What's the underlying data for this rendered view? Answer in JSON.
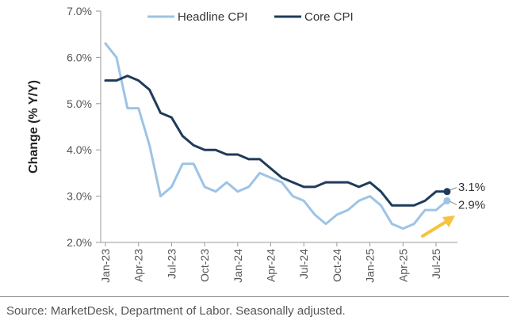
{
  "chart_data": {
    "type": "line",
    "ylabel": "Change (% Y/Y)",
    "ylim": [
      2.0,
      7.0
    ],
    "yticks": [
      "7.0%",
      "6.0%",
      "5.0%",
      "4.0%",
      "3.0%",
      "2.0%"
    ],
    "ytick_values": [
      7.0,
      6.0,
      5.0,
      4.0,
      3.0,
      2.0
    ],
    "xtick_labels": [
      "Jan-23",
      "Apr-23",
      "Jul-23",
      "Oct-23",
      "Jan-24",
      "Apr-24",
      "Jul-24",
      "Oct-24",
      "Jan-25",
      "Apr-25",
      "Jul-25"
    ],
    "xtick_months": [
      0,
      3,
      6,
      9,
      12,
      15,
      18,
      21,
      24,
      27,
      30
    ],
    "months": [
      "Jan-23",
      "Feb-23",
      "Mar-23",
      "Apr-23",
      "May-23",
      "Jun-23",
      "Jul-23",
      "Aug-23",
      "Sep-23",
      "Oct-23",
      "Nov-23",
      "Dec-23",
      "Jan-24",
      "Feb-24",
      "Mar-24",
      "Apr-24",
      "May-24",
      "Jun-24",
      "Jul-24",
      "Aug-24",
      "Sep-24",
      "Oct-24",
      "Nov-24",
      "Dec-24",
      "Jan-25",
      "Feb-25",
      "Mar-25",
      "Apr-25",
      "May-25",
      "Jun-25",
      "Jul-25",
      "Aug-25"
    ],
    "series": [
      {
        "name": "Headline CPI",
        "color": "#9dc3e6",
        "values": [
          6.3,
          6.0,
          4.9,
          4.9,
          4.1,
          3.0,
          3.2,
          3.7,
          3.7,
          3.2,
          3.1,
          3.3,
          3.1,
          3.2,
          3.5,
          3.4,
          3.3,
          3.0,
          2.9,
          2.6,
          2.4,
          2.6,
          2.7,
          2.9,
          3.0,
          2.8,
          2.4,
          2.3,
          2.4,
          2.7,
          2.7,
          2.9
        ],
        "end_label": "2.9%"
      },
      {
        "name": "Core CPI",
        "color": "#1f3b5c",
        "values": [
          5.5,
          5.5,
          5.6,
          5.5,
          5.3,
          4.8,
          4.7,
          4.3,
          4.1,
          4.0,
          4.0,
          3.9,
          3.9,
          3.8,
          3.8,
          3.6,
          3.4,
          3.3,
          3.2,
          3.2,
          3.3,
          3.3,
          3.3,
          3.2,
          3.3,
          3.1,
          2.8,
          2.8,
          2.8,
          2.9,
          3.1,
          3.1
        ],
        "end_label": "3.1%"
      }
    ],
    "legend": [
      "Headline CPI",
      "Core CPI"
    ],
    "legend_position": "top",
    "annotation": "upward-arrow",
    "annotation_color": "#f5c242"
  },
  "source": "Source: MarketDesk, Department of Labor. Seasonally adjusted."
}
